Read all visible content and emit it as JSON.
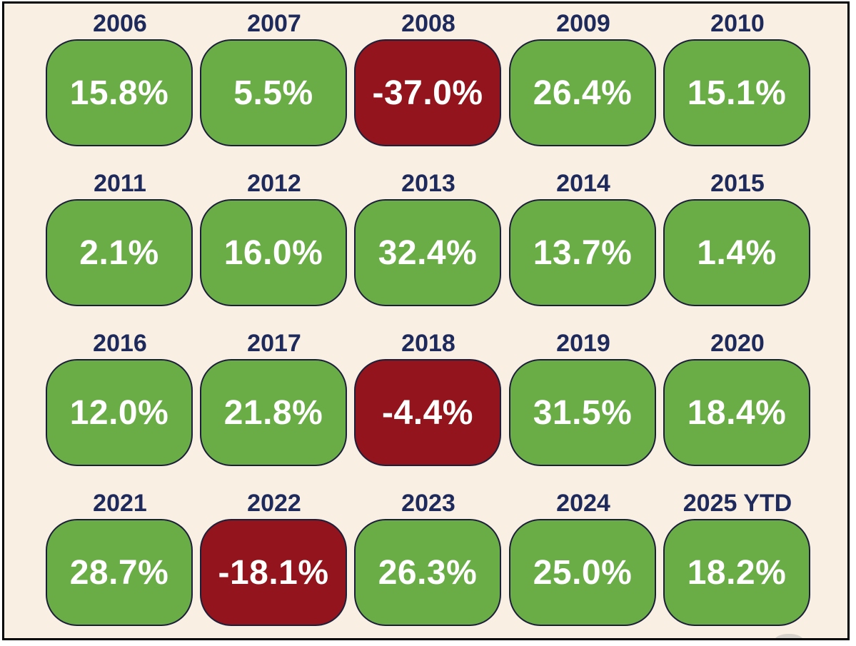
{
  "chart_data": {
    "type": "table",
    "colors": {
      "positive": "#6aac46",
      "negative": "#93141c",
      "year_label": "#1d2a5b",
      "background": "#f9efe2"
    },
    "cells": [
      {
        "year": "2006",
        "value": "15.8%",
        "numeric": 15.8
      },
      {
        "year": "2007",
        "value": "5.5%",
        "numeric": 5.5
      },
      {
        "year": "2008",
        "value": "-37.0%",
        "numeric": -37.0
      },
      {
        "year": "2009",
        "value": "26.4%",
        "numeric": 26.4
      },
      {
        "year": "2010",
        "value": "15.1%",
        "numeric": 15.1
      },
      {
        "year": "2011",
        "value": "2.1%",
        "numeric": 2.1
      },
      {
        "year": "2012",
        "value": "16.0%",
        "numeric": 16.0
      },
      {
        "year": "2013",
        "value": "32.4%",
        "numeric": 32.4
      },
      {
        "year": "2014",
        "value": "13.7%",
        "numeric": 13.7
      },
      {
        "year": "2015",
        "value": "1.4%",
        "numeric": 1.4
      },
      {
        "year": "2016",
        "value": "12.0%",
        "numeric": 12.0
      },
      {
        "year": "2017",
        "value": "21.8%",
        "numeric": 21.8
      },
      {
        "year": "2018",
        "value": "-4.4%",
        "numeric": -4.4
      },
      {
        "year": "2019",
        "value": "31.5%",
        "numeric": 31.5
      },
      {
        "year": "2020",
        "value": "18.4%",
        "numeric": 18.4
      },
      {
        "year": "2021",
        "value": "28.7%",
        "numeric": 28.7
      },
      {
        "year": "2022",
        "value": "-18.1%",
        "numeric": -18.1
      },
      {
        "year": "2023",
        "value": "26.3%",
        "numeric": 26.3
      },
      {
        "year": "2024",
        "value": "25.0%",
        "numeric": 25.0
      },
      {
        "year": "2025 YTD",
        "value": "18.2%",
        "numeric": 18.2
      }
    ]
  }
}
